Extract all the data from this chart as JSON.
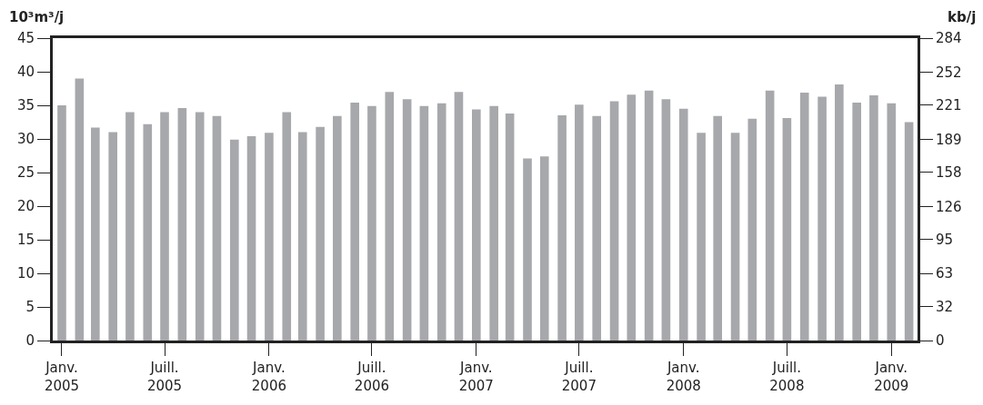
{
  "chart_data": {
    "type": "bar",
    "ylabel": "10³m³/j",
    "y2label": "kb/j",
    "x": [
      "2005-01",
      "2005-02",
      "2005-03",
      "2005-04",
      "2005-05",
      "2005-06",
      "2005-07",
      "2005-08",
      "2005-09",
      "2005-10",
      "2005-11",
      "2005-12",
      "2006-01",
      "2006-02",
      "2006-03",
      "2006-04",
      "2006-05",
      "2006-06",
      "2006-07",
      "2006-08",
      "2006-09",
      "2006-10",
      "2006-11",
      "2006-12",
      "2007-01",
      "2007-02",
      "2007-03",
      "2007-04",
      "2007-05",
      "2007-06",
      "2007-07",
      "2007-08",
      "2007-09",
      "2007-10",
      "2007-11",
      "2007-12",
      "2008-01",
      "2008-02",
      "2008-03",
      "2008-04",
      "2008-05",
      "2008-06",
      "2008-07",
      "2008-08",
      "2008-09",
      "2008-10",
      "2008-11",
      "2008-12",
      "2009-01",
      "2009-02"
    ],
    "series": [
      {
        "color": "#a7a8ab",
        "values": [
          35,
          39,
          31.7,
          31,
          34,
          32.2,
          34,
          34.6,
          34,
          33.4,
          29.9,
          30.4,
          30.9,
          34,
          31,
          31.8,
          33.4,
          35.4,
          34.9,
          37,
          35.9,
          34.9,
          35.3,
          37,
          34.4,
          34.9,
          33.8,
          27.1,
          27.4,
          33.5,
          35.1,
          33.4,
          35.6,
          36.6,
          37.2,
          35.9,
          34.5,
          30.9,
          33.4,
          30.9,
          33,
          37.2,
          33.1,
          36.9,
          36.3,
          38.1,
          35.4,
          36.5,
          35.3,
          32.5
        ]
      }
    ],
    "xlim": [
      "2004-12-16",
      "2009-02-16"
    ],
    "xticks": [
      {
        "value": "2005-01",
        "label": "Janv.\n2005"
      },
      {
        "value": "2005-07",
        "label": "Juill.\n2005"
      },
      {
        "value": "2006-01",
        "label": "Janv.\n2006"
      },
      {
        "value": "2006-07",
        "label": "Juill.\n2006"
      },
      {
        "value": "2007-01",
        "label": "Janv.\n2007"
      },
      {
        "value": "2007-07",
        "label": "Juill.\n2007"
      },
      {
        "value": "2008-01",
        "label": "Janv.\n2008"
      },
      {
        "value": "2008-07",
        "label": "Juill.\n2008"
      },
      {
        "value": "2009-01",
        "label": "Janv.\n2009"
      }
    ],
    "ylim": [
      0,
      45
    ],
    "yticks": [
      0,
      5,
      10,
      15,
      20,
      25,
      30,
      35,
      40,
      45
    ],
    "y2lim": [
      0,
      284
    ],
    "y2ticks": [
      0,
      32,
      63,
      95,
      126,
      158,
      189,
      221,
      252,
      284
    ]
  }
}
